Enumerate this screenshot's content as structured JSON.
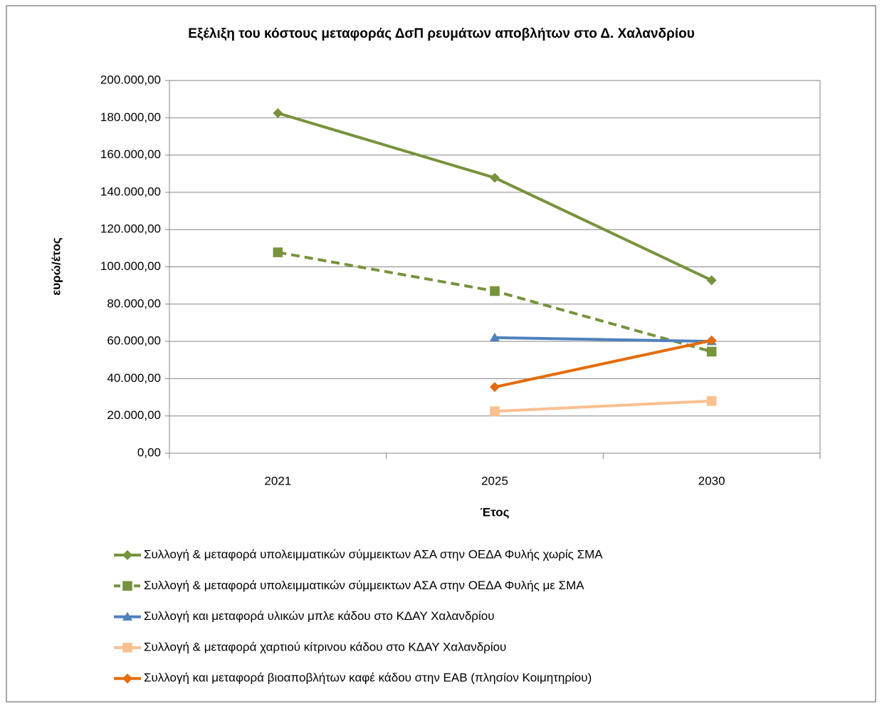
{
  "chart_data": {
    "type": "line",
    "title": "Εξέλιξη του κόστους μεταφοράς ΔσΠ ρευμάτων  αποβλήτων στο Δ. Χαλανδρίου",
    "x_label": "Έτος",
    "y_label": "ευρώ/έτος",
    "categories": [
      "2021",
      "2025",
      "2030"
    ],
    "ylim": [
      0,
      200000
    ],
    "yticks": [
      {
        "value": 0,
        "label": "0,00"
      },
      {
        "value": 20000,
        "label": "20.000,00"
      },
      {
        "value": 40000,
        "label": "40.000,00"
      },
      {
        "value": 60000,
        "label": "60.000,00"
      },
      {
        "value": 80000,
        "label": "80.000,00"
      },
      {
        "value": 100000,
        "label": "100.000,00"
      },
      {
        "value": 120000,
        "label": "120.000,00"
      },
      {
        "value": 140000,
        "label": "140.000,00"
      },
      {
        "value": 160000,
        "label": "160.000,00"
      },
      {
        "value": 180000,
        "label": "180.000,00"
      },
      {
        "value": 200000,
        "label": "200.000,00"
      }
    ],
    "grid": true,
    "legend": "bottom",
    "series": [
      {
        "name": "Συλλογή & μεταφορά υπολειμματικών σύμμεικτων ΑΣΑ στην ΟΕΔΑ Φυλής  χωρίς ΣΜΑ",
        "color": "#77933c",
        "marker": "diamond",
        "dashed": false,
        "values": [
          182500,
          147800,
          92800
        ]
      },
      {
        "name": "Συλλογή & μεταφορά υπολειμματικών σύμμεικτων ΑΣΑ στην ΟΕΔΑ Φυλής με ΣΜΑ",
        "color": "#77933c",
        "marker": "square",
        "dashed": true,
        "values": [
          107800,
          87000,
          54500
        ]
      },
      {
        "name": "Συλλογή και μεταφορά υλικών μπλε κάδου στο ΚΔΑΥ Χαλανδρίου",
        "color": "#4f81bd",
        "marker": "triangle",
        "dashed": false,
        "values": [
          null,
          62000,
          60000
        ]
      },
      {
        "name": "Συλλογή & μεταφορά χαρτιού κίτρινου κάδου στο ΚΔΑΥ Χαλανδρίου",
        "color": "#fac090",
        "marker": "square",
        "dashed": false,
        "values": [
          null,
          22500,
          28000
        ]
      },
      {
        "name": "Συλλογή και μεταφορά βιοαποβλήτων καφέ κάδου στην ΕΑΒ (πλησίον Κοιμητηρίου)",
        "color": "#e46c0a",
        "marker": "diamond",
        "dashed": false,
        "values": [
          null,
          35500,
          60500
        ]
      }
    ]
  }
}
